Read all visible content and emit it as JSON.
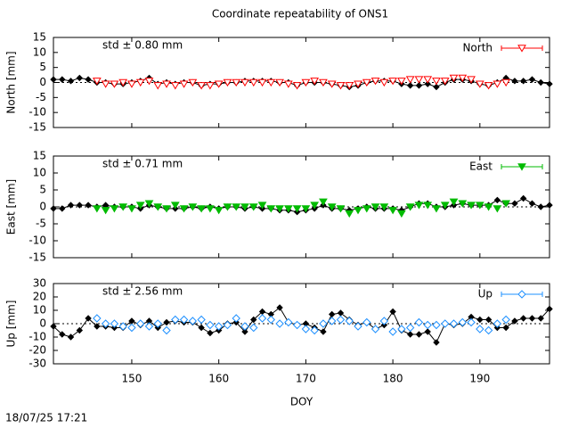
{
  "title": "Coordinate repeatability of ONS1",
  "footer": "18/07/25 17:21",
  "chart_data": [
    {
      "type": "line",
      "ylabel": "North [mm]",
      "annotation": "std ± 0.80 mm",
      "legend": "top-right",
      "zero_line": true,
      "xlim": [
        141,
        198
      ],
      "xticks": [
        150,
        160,
        170,
        180,
        190
      ],
      "ylim": [
        -15,
        15
      ],
      "yticks": [
        -15,
        -10,
        -5,
        0,
        5,
        10,
        15
      ],
      "series": [
        {
          "color": "#000000",
          "marker": "diamond",
          "connected": true,
          "x": [
            141,
            142,
            143,
            144,
            145,
            146,
            147,
            148,
            149,
            150,
            151,
            152,
            153,
            154,
            155,
            156,
            157,
            158,
            159,
            160,
            161,
            162,
            163,
            164,
            165,
            166,
            167,
            168,
            169,
            170,
            171,
            172,
            173,
            174,
            175,
            176,
            177,
            178,
            179,
            180,
            181,
            182,
            183,
            184,
            185,
            186,
            187,
            188,
            189,
            190,
            191,
            192,
            193,
            194,
            195,
            196,
            197,
            198
          ],
          "values": [
            1,
            1,
            0.5,
            1.5,
            1,
            0,
            0,
            -0.5,
            -0.5,
            0,
            0.5,
            1.5,
            -0.5,
            0,
            -0.5,
            0,
            0,
            -1,
            -0.5,
            -0.5,
            0,
            0,
            0.5,
            0.5,
            0.5,
            0.5,
            0,
            0,
            -1,
            0,
            0,
            0,
            -0.5,
            -1,
            -1.5,
            -1,
            0,
            0.5,
            0.5,
            0.5,
            -0.5,
            -1,
            -1,
            -0.5,
            -1.5,
            0,
            1,
            1,
            0.5,
            -0.5,
            -1,
            0,
            1.5,
            0.5,
            0.5,
            1,
            0,
            -0.5
          ]
        },
        {
          "name": "North",
          "color": "#ff0000",
          "marker": "triangle-down-open",
          "connected": false,
          "x": [
            146,
            147,
            148,
            149,
            150,
            151,
            152,
            153,
            154,
            155,
            156,
            157,
            158,
            159,
            160,
            161,
            162,
            163,
            164,
            165,
            166,
            167,
            168,
            169,
            170,
            171,
            172,
            173,
            174,
            175,
            176,
            177,
            178,
            179,
            180,
            181,
            182,
            183,
            184,
            185,
            186,
            187,
            188,
            189,
            190,
            191,
            192,
            193
          ],
          "values": [
            0.5,
            -0.5,
            -0.5,
            0,
            -0.5,
            0,
            0.5,
            -1,
            -0.5,
            -1,
            -0.5,
            0,
            -1,
            -1,
            -0.5,
            0,
            0,
            0,
            0,
            0,
            0,
            0,
            -0.5,
            -1,
            0,
            0.5,
            0,
            -0.5,
            -1,
            -1,
            -0.5,
            0,
            0.5,
            0,
            0.5,
            0.5,
            1,
            1,
            1,
            0.5,
            0.5,
            1.5,
            1.5,
            1,
            -0.5,
            -1,
            -0.5,
            0
          ]
        }
      ]
    },
    {
      "type": "line",
      "ylabel": "East [mm]",
      "annotation": "std ± 0.71 mm",
      "legend": "top-right",
      "zero_line": true,
      "xlim": [
        141,
        198
      ],
      "xticks": [
        150,
        160,
        170,
        180,
        190
      ],
      "ylim": [
        -15,
        15
      ],
      "yticks": [
        -15,
        -10,
        -5,
        0,
        5,
        10,
        15
      ],
      "series": [
        {
          "color": "#000000",
          "marker": "diamond",
          "connected": true,
          "x": [
            141,
            142,
            143,
            144,
            145,
            146,
            147,
            148,
            149,
            150,
            151,
            152,
            153,
            154,
            155,
            156,
            157,
            158,
            159,
            160,
            161,
            162,
            163,
            164,
            165,
            166,
            167,
            168,
            169,
            170,
            171,
            172,
            173,
            174,
            175,
            176,
            177,
            178,
            179,
            180,
            181,
            182,
            183,
            184,
            185,
            186,
            187,
            188,
            189,
            190,
            191,
            192,
            193,
            194,
            195,
            196,
            197,
            198
          ],
          "values": [
            -0.5,
            -0.5,
            0.5,
            0.5,
            0.5,
            0,
            0.5,
            0,
            0,
            0,
            -0.5,
            0.5,
            0,
            -0.5,
            -0.5,
            -0.5,
            0,
            -0.5,
            0,
            -0.5,
            0,
            0,
            -0.5,
            0,
            -0.5,
            -0.5,
            -1,
            -1,
            -1.5,
            -1,
            -0.5,
            0.5,
            -0.5,
            -0.5,
            -1,
            -0.5,
            0,
            -0.5,
            -0.5,
            -0.5,
            -1,
            0,
            1,
            1,
            0,
            0,
            0.5,
            1,
            0.5,
            0.5,
            0.5,
            2,
            1,
            1,
            2.5,
            1,
            0,
            0.5
          ]
        },
        {
          "name": "East",
          "color": "#00bb00",
          "marker": "triangle-down",
          "connected": false,
          "x": [
            146,
            147,
            148,
            149,
            150,
            151,
            152,
            153,
            154,
            155,
            156,
            157,
            158,
            159,
            160,
            161,
            162,
            163,
            164,
            165,
            166,
            167,
            168,
            169,
            170,
            171,
            172,
            173,
            174,
            175,
            176,
            177,
            178,
            179,
            180,
            181,
            182,
            183,
            184,
            185,
            186,
            187,
            188,
            189,
            190,
            191,
            192,
            193
          ],
          "values": [
            -0.5,
            -1,
            -0.5,
            0,
            -0.5,
            0.5,
            1,
            0,
            -0.5,
            0.5,
            -0.5,
            0,
            -0.5,
            -0.5,
            -1,
            0,
            0,
            0,
            0,
            0.5,
            -0.5,
            -0.5,
            -0.5,
            -0.5,
            -0.5,
            0.5,
            1.5,
            0,
            -0.5,
            -2,
            -1,
            -0.5,
            0,
            0,
            -1,
            -2,
            0,
            0.5,
            0.5,
            -0.5,
            0.5,
            1.5,
            1,
            0.5,
            0.5,
            0,
            -0.5,
            1
          ]
        }
      ]
    },
    {
      "type": "line",
      "ylabel": "Up [mm]",
      "xlabel": "DOY",
      "annotation": "std ± 2.56 mm",
      "legend": "top-right",
      "zero_line": true,
      "xlim": [
        141,
        198
      ],
      "xticks": [
        150,
        160,
        170,
        180,
        190
      ],
      "ylim": [
        -30,
        30
      ],
      "yticks": [
        -30,
        -20,
        -10,
        0,
        10,
        20,
        30
      ],
      "series": [
        {
          "color": "#000000",
          "marker": "diamond",
          "connected": true,
          "x": [
            141,
            142,
            143,
            144,
            145,
            146,
            147,
            148,
            149,
            150,
            151,
            152,
            153,
            154,
            155,
            156,
            157,
            158,
            159,
            160,
            161,
            162,
            163,
            164,
            165,
            166,
            167,
            168,
            169,
            170,
            171,
            172,
            173,
            174,
            175,
            176,
            177,
            178,
            179,
            180,
            181,
            182,
            183,
            184,
            185,
            186,
            187,
            188,
            189,
            190,
            191,
            192,
            193,
            194,
            195,
            196,
            197,
            198
          ],
          "values": [
            -2,
            -8,
            -10,
            -5,
            4,
            -2,
            -2,
            -3,
            -3,
            2,
            -1,
            2,
            -3,
            1,
            2,
            1,
            1,
            -3,
            -7,
            -5,
            0,
            1,
            -6,
            3,
            9,
            7,
            12,
            1,
            -1,
            0,
            -3,
            -6,
            7,
            8,
            3,
            -1,
            1,
            -4,
            -1,
            9,
            -5,
            -8,
            -8,
            -6,
            -14,
            0,
            -1,
            0,
            5,
            3,
            3,
            -3,
            -3,
            2,
            4,
            4,
            4,
            11
          ]
        },
        {
          "name": "Up",
          "color": "#1e90ff",
          "marker": "diamond-open",
          "connected": false,
          "x": [
            146,
            147,
            148,
            149,
            150,
            151,
            152,
            153,
            154,
            155,
            156,
            157,
            158,
            159,
            160,
            161,
            162,
            163,
            164,
            165,
            166,
            167,
            168,
            169,
            170,
            171,
            172,
            173,
            174,
            175,
            176,
            177,
            178,
            179,
            180,
            181,
            182,
            183,
            184,
            185,
            186,
            187,
            188,
            189,
            190,
            191,
            192,
            193
          ],
          "values": [
            4,
            0,
            0,
            -2,
            -3,
            0,
            -2,
            0,
            -5,
            3,
            3,
            2,
            3,
            -1,
            -2,
            -1,
            4,
            -2,
            -3,
            4,
            3,
            0,
            1,
            -1,
            -4,
            -5,
            0,
            2,
            3,
            2,
            -2,
            1,
            -4,
            2,
            -6,
            -4,
            -3,
            1,
            -1,
            -1,
            0,
            0,
            1,
            1,
            -4,
            -5,
            0,
            3
          ]
        }
      ]
    }
  ]
}
